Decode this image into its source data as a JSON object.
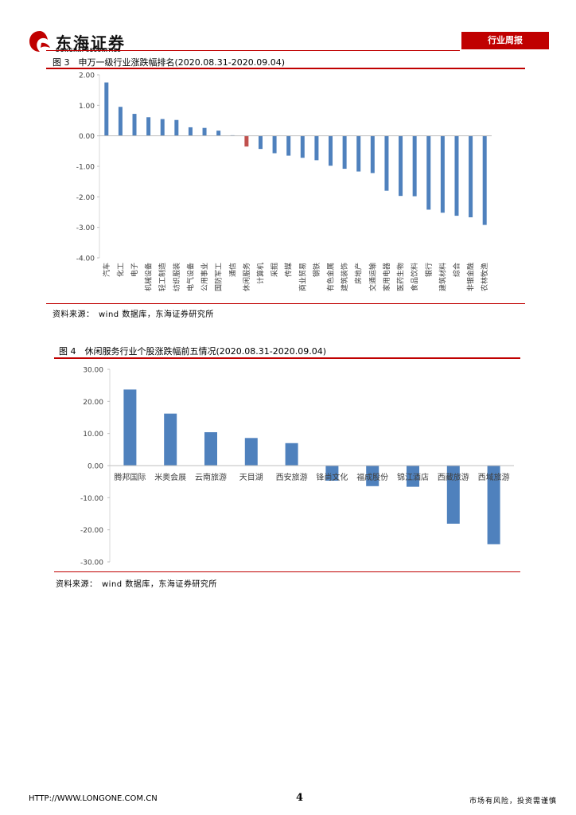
{
  "header": {
    "logo_cn": "东海证券",
    "logo_en": "DONGHAI SECURITIES",
    "badge": "行业周报"
  },
  "figure3": {
    "title": "图 3　申万一级行业涨跌幅排名(2020.08.31-2020.09.04)",
    "source": "资料来源：　wind 数据库，东海证券研究所"
  },
  "figure4": {
    "title": "图 4　休闲服务行业个股涨跌幅前五情况(2020.08.31-2020.09.04)",
    "source": "资料来源：　wind 数据库，东海证券研究所"
  },
  "footer": {
    "url": "HTTP://WWW.LONGONE.COM.CN",
    "page": "4",
    "note": "市场有风险，投资需谨慎"
  },
  "colors": {
    "bar": "#4f81bd",
    "highlight": "#c0504d",
    "accent": "#c00000"
  },
  "chart_data": [
    {
      "type": "bar",
      "title": "申万一级行业涨跌幅排名(2020.08.31-2020.09.04)",
      "ylim": [
        -4,
        2
      ],
      "yticks": [
        "2.00",
        "1.00",
        "0.00",
        "-1.00",
        "-2.00",
        "-3.00",
        "-4.00"
      ],
      "categories": [
        "汽车",
        "化工",
        "电子",
        "机械设备",
        "轻工制造",
        "纺织服装",
        "电气设备",
        "公用事业",
        "国防军工",
        "通信",
        "休闲服务",
        "计算机",
        "采掘",
        "传媒",
        "商业贸易",
        "钢铁",
        "有色金属",
        "建筑装饰",
        "房地产",
        "交通运输",
        "家用电器",
        "医药生物",
        "食品饮料",
        "银行",
        "建筑材料",
        "综合",
        "非银金融",
        "农林牧渔"
      ],
      "values": [
        1.75,
        0.95,
        0.72,
        0.61,
        0.55,
        0.52,
        0.28,
        0.26,
        0.17,
        0.02,
        -0.35,
        -0.43,
        -0.57,
        -0.65,
        -0.72,
        -0.8,
        -0.98,
        -1.08,
        -1.17,
        -1.22,
        -1.8,
        -1.97,
        -1.98,
        -2.42,
        -2.52,
        -2.62,
        -2.67,
        -2.92
      ],
      "highlight": "休闲服务"
    },
    {
      "type": "bar",
      "title": "休闲服务行业个股涨跌幅前五情况(2020.08.31-2020.09.04)",
      "ylim": [
        -30,
        30
      ],
      "yticks": [
        "30.00",
        "20.00",
        "10.00",
        "0.00",
        "-10.00",
        "-20.00",
        "-30.00"
      ],
      "categories": [
        "腾邦国际",
        "米奥会展",
        "云南旅游",
        "天目湖",
        "西安旅游",
        "锋尚文化",
        "福成股份",
        "锦江酒店",
        "西藏旅游",
        "西域旅游"
      ],
      "values": [
        23.7,
        16.2,
        10.4,
        8.6,
        7.0,
        -4.7,
        -6.4,
        -6.6,
        -18.1,
        -24.5
      ]
    }
  ]
}
